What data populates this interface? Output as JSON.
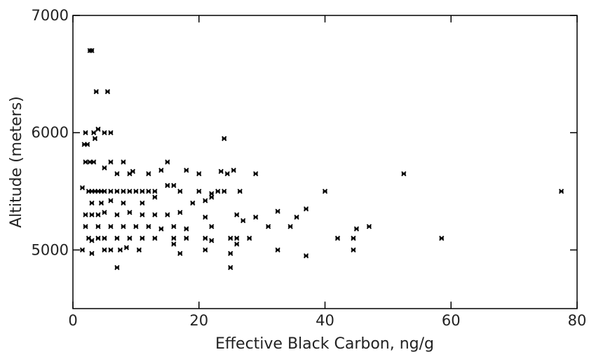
{
  "chart_data": {
    "type": "scatter",
    "x_label": "Effective Black Carbon, ng/g",
    "y_label": "Altitude (meters)",
    "color": "#000000",
    "xlim": [
      0,
      80
    ],
    "xticks": [
      0,
      20,
      40,
      60,
      80
    ],
    "ylim": [
      4500,
      7000
    ],
    "yticks": [
      5000,
      6000,
      7000
    ],
    "x": [
      2.7,
      3,
      3.7,
      5.5,
      2,
      3.3,
      4,
      5,
      6,
      3.5,
      1.8,
      2.3,
      24,
      2,
      2.7,
      3.3,
      6,
      8,
      15,
      5,
      7,
      9,
      9.5,
      12,
      14,
      18,
      20,
      23.5,
      24.5,
      25.5,
      29,
      52.5,
      1.5,
      2.5,
      3,
      3.5,
      4,
      4.5,
      5,
      6,
      7,
      8,
      9,
      10,
      11,
      12,
      13,
      15,
      16,
      17,
      20,
      22,
      23,
      24,
      26.5,
      40,
      77.5,
      3,
      4.5,
      6,
      8,
      11,
      13,
      19,
      21,
      22,
      2,
      3,
      4,
      5,
      7,
      9,
      11,
      13,
      15,
      17,
      21,
      27,
      29,
      32.5,
      35.5,
      37,
      2,
      4,
      6,
      8,
      10,
      12,
      14,
      16,
      18,
      22,
      26,
      31,
      34.5,
      45,
      47,
      2.5,
      3,
      4,
      5,
      7,
      9,
      11,
      13,
      16,
      18,
      21,
      22,
      25,
      26,
      28,
      42,
      44.5,
      58.5,
      1.5,
      3,
      5,
      6,
      7.5,
      8.5,
      10.5,
      16,
      17,
      21,
      25,
      26,
      32.5,
      37,
      44.5,
      7,
      25
    ],
    "values": [
      6700,
      6700,
      6350,
      6350,
      6000,
      6000,
      6030,
      6000,
      6000,
      5950,
      5900,
      5900,
      5950,
      5750,
      5750,
      5750,
      5750,
      5750,
      5750,
      5700,
      5650,
      5650,
      5670,
      5650,
      5680,
      5680,
      5650,
      5670,
      5650,
      5680,
      5650,
      5650,
      5530,
      5500,
      5500,
      5500,
      5500,
      5500,
      5500,
      5500,
      5500,
      5500,
      5500,
      5500,
      5500,
      5500,
      5500,
      5550,
      5550,
      5500,
      5500,
      5480,
      5500,
      5500,
      5500,
      5500,
      5500,
      5400,
      5400,
      5420,
      5400,
      5400,
      5450,
      5400,
      5420,
      5450,
      5300,
      5300,
      5300,
      5320,
      5300,
      5320,
      5300,
      5300,
      5300,
      5320,
      5280,
      5250,
      5280,
      5330,
      5280,
      5350,
      5200,
      5200,
      5200,
      5200,
      5200,
      5200,
      5180,
      5200,
      5180,
      5200,
      5300,
      5200,
      5200,
      5180,
      5200,
      5100,
      5080,
      5100,
      5100,
      5100,
      5100,
      5100,
      5100,
      5100,
      5100,
      5100,
      5080,
      5100,
      5100,
      5100,
      5100,
      5100,
      5100,
      5000,
      4970,
      5000,
      5000,
      5000,
      5020,
      5000,
      5050,
      4970,
      5000,
      4970,
      5050,
      5000,
      4950,
      5000,
      4850,
      4850
    ]
  }
}
